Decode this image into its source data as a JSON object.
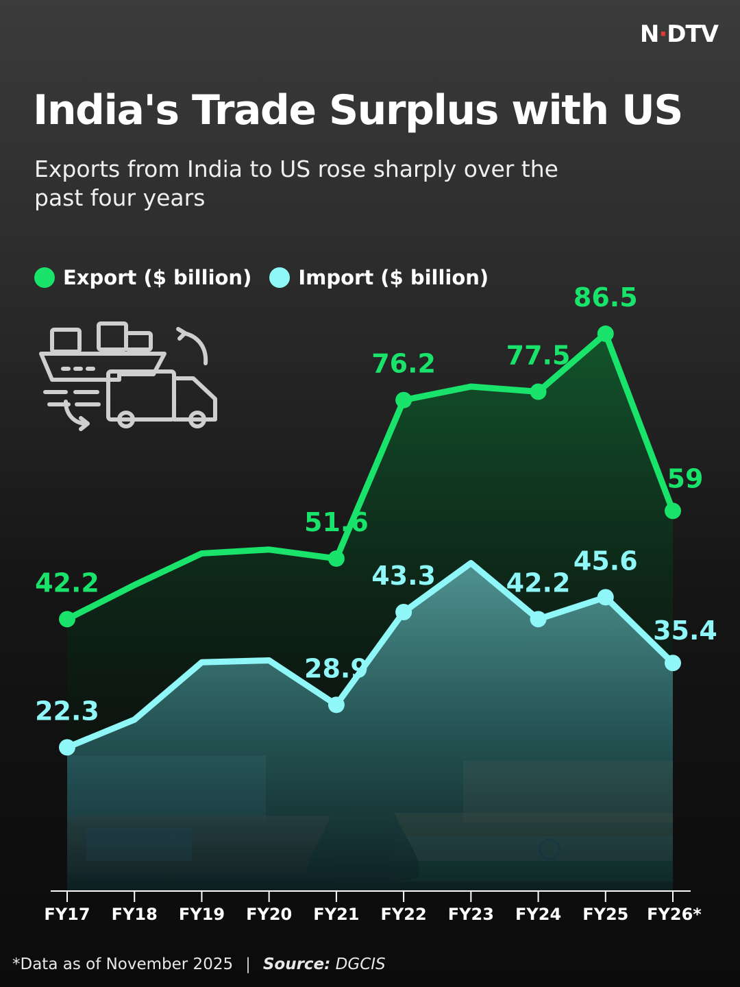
{
  "brand": {
    "logo_prefix": "N",
    "logo_dot": "·",
    "logo_suffix": "DTV"
  },
  "header": {
    "title": "India's Trade Surplus with US",
    "subtitle": "Exports from India to US rose sharply over the past four years"
  },
  "legend": {
    "export_label": "Export ($ billion)",
    "import_label": "Import ($ billion)"
  },
  "colors": {
    "export": "#19e36a",
    "import": "#8ff7f8",
    "accent": "#e53935"
  },
  "icons": {
    "illustration": "ship-truck-logistics-icon"
  },
  "chart_data": {
    "type": "line",
    "title": "India's Trade Surplus with US",
    "categories": [
      "FY17",
      "FY18",
      "FY19",
      "FY20",
      "FY21",
      "FY22",
      "FY23",
      "FY24",
      "FY25",
      "FY26*"
    ],
    "series": [
      {
        "name": "Export ($ billion)",
        "values": [
          42.2,
          47.5,
          52.4,
          53.0,
          51.6,
          76.2,
          78.3,
          77.5,
          86.5,
          59
        ],
        "labels": [
          "42.2",
          "",
          "",
          "",
          "51.6",
          "76.2",
          "",
          "77.5",
          "86.5",
          "59"
        ]
      },
      {
        "name": "Import ($ billion)",
        "values": [
          22.3,
          26.6,
          35.5,
          35.8,
          28.9,
          43.3,
          50.9,
          42.2,
          45.6,
          35.4
        ],
        "labels": [
          "22.3",
          "",
          "",
          "",
          "28.9",
          "43.3",
          "",
          "42.2",
          "45.6",
          "35.4"
        ]
      }
    ],
    "ylim": [
      0,
      100
    ],
    "grid": false,
    "legend": "top-left"
  },
  "footer": {
    "note": "*Data as of November 2025",
    "separator": "|",
    "source_label": "Source:",
    "source_value": "DGCIS"
  }
}
